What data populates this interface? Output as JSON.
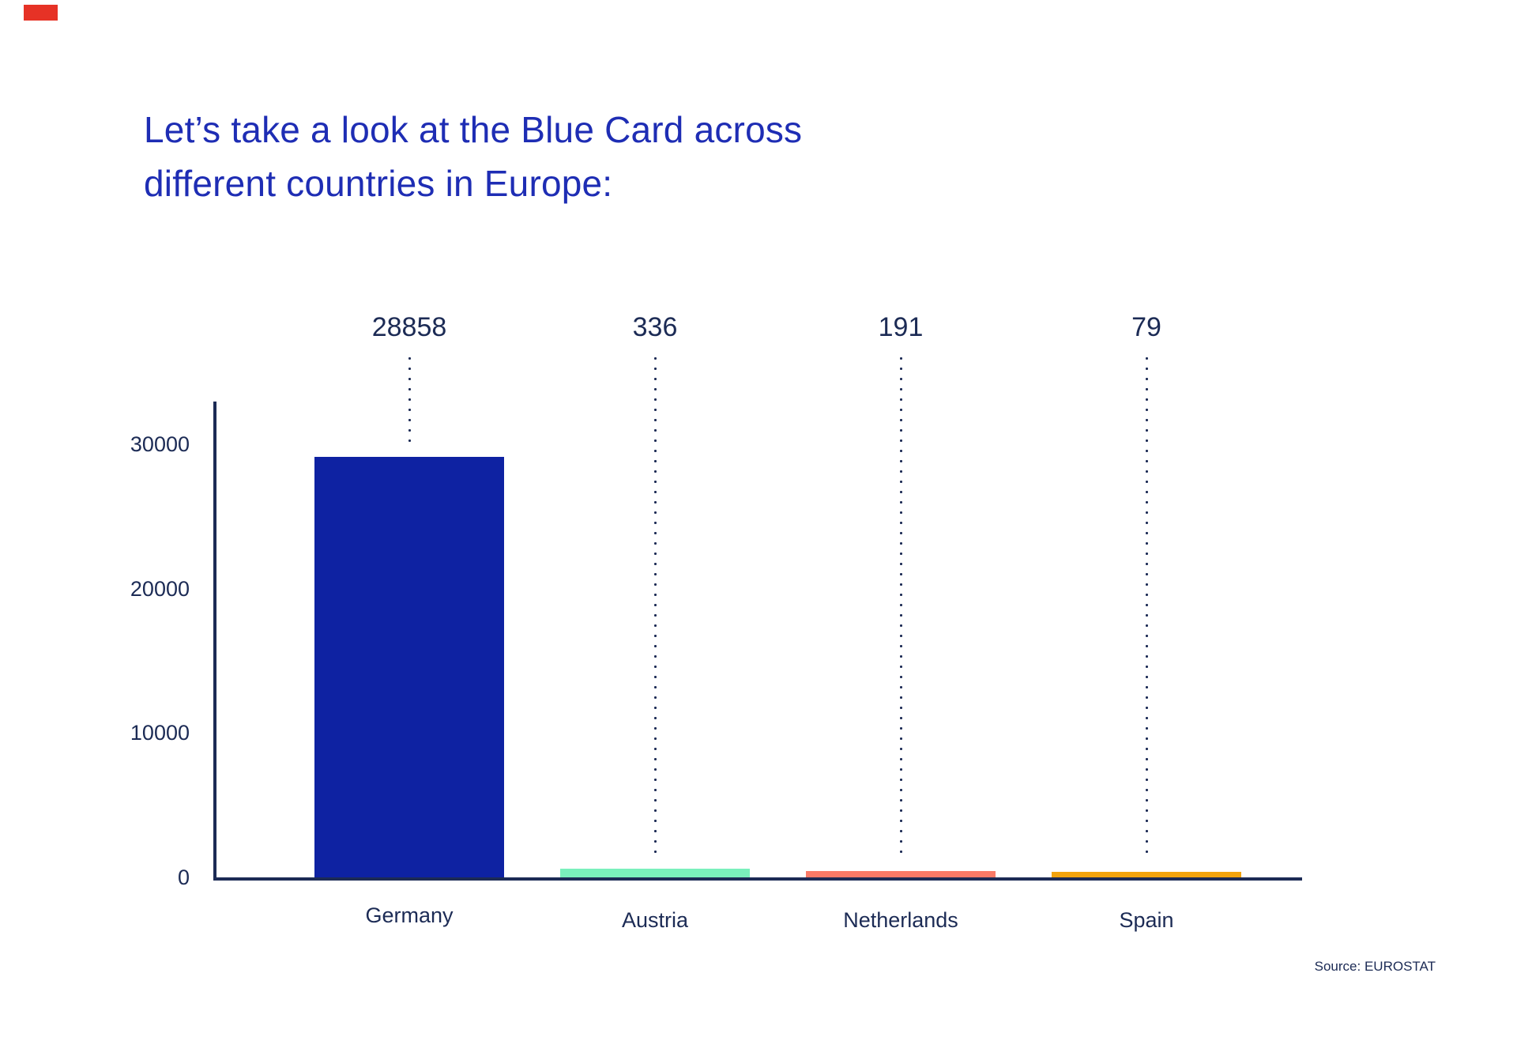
{
  "page": {
    "background": "#ffffff"
  },
  "marker": {
    "color": "#e63226"
  },
  "title": {
    "line1": "Let’s take a look at the Blue Card across",
    "line2": "different countries in Europe:",
    "color": "#1e2db4"
  },
  "source": {
    "text": "Source: EUROSTAT"
  },
  "chart_data": {
    "type": "bar",
    "title": "Let’s take a look at the Blue Card across different countries in Europe:",
    "categories": [
      "Germany",
      "Austria",
      "Netherlands",
      "Spain"
    ],
    "values": [
      28858,
      336,
      191,
      79
    ],
    "data_labels": [
      "28858",
      "336",
      "191",
      "79"
    ],
    "bar_colors": [
      "#0e22a2",
      "#7af0bc",
      "#fa7a67",
      "#f2a30d"
    ],
    "yticks": [
      0,
      10000,
      20000,
      30000
    ],
    "ytick_labels": [
      "0",
      "10000",
      "20000",
      "30000"
    ],
    "ylim": [
      0,
      33000
    ],
    "xlabel": "",
    "ylabel": "",
    "axis_color": "#1c2b55",
    "text_color": "#1c2b55",
    "grid": false,
    "legend": false,
    "annotations": "dotted vertical leader lines connect each value label to its bar",
    "source": "Source: EUROSTAT"
  }
}
